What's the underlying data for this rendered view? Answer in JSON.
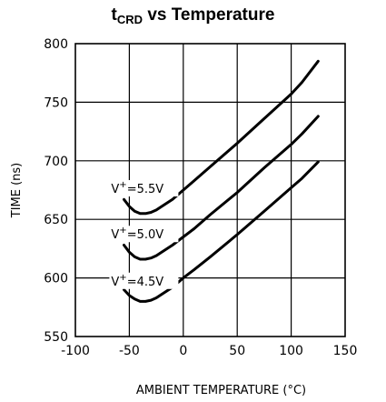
{
  "chart_data": {
    "type": "line",
    "title": {
      "main": "t",
      "sub": "CRD",
      "rest": " vs Temperature"
    },
    "xlabel": "AMBIENT TEMPERATURE (°C)",
    "ylabel": "TIME (ns)",
    "xlim": [
      -100,
      150
    ],
    "ylim": [
      550,
      800
    ],
    "xticks": [
      -100,
      -50,
      0,
      50,
      100,
      150
    ],
    "yticks": [
      550,
      600,
      650,
      700,
      750,
      800
    ],
    "grid": true,
    "series": [
      {
        "name": "V+=5.5V",
        "label": {
          "base": "V",
          "sup": "+",
          "rest": "=5.5V"
        },
        "x": [
          -55,
          -50,
          -45,
          -40,
          -35,
          -30,
          -25,
          -20,
          -10,
          0,
          10,
          25,
          50,
          75,
          100,
          110,
          125
        ],
        "y": [
          667,
          661,
          657,
          655,
          655,
          656,
          658,
          661,
          667,
          675,
          683,
          695,
          715,
          736,
          757,
          767,
          785
        ]
      },
      {
        "name": "V+=5.0V",
        "label": {
          "base": "V",
          "sup": "+",
          "rest": "=5.0V"
        },
        "x": [
          -55,
          -50,
          -45,
          -40,
          -35,
          -30,
          -25,
          -20,
          -10,
          0,
          10,
          25,
          50,
          75,
          100,
          110,
          125
        ],
        "y": [
          628,
          622,
          618,
          616,
          616,
          617,
          619,
          622,
          628,
          635,
          642,
          654,
          673,
          694,
          714,
          723,
          738
        ]
      },
      {
        "name": "V+=4.5V",
        "label": {
          "base": "V",
          "sup": "+",
          "rest": "=4.5V"
        },
        "x": [
          -55,
          -50,
          -45,
          -40,
          -35,
          -30,
          -25,
          -20,
          -10,
          0,
          10,
          25,
          50,
          75,
          100,
          110,
          125
        ],
        "y": [
          590,
          585,
          582,
          580,
          580,
          581,
          583,
          586,
          592,
          600,
          607,
          618,
          637,
          657,
          677,
          685,
          699
        ]
      }
    ]
  }
}
